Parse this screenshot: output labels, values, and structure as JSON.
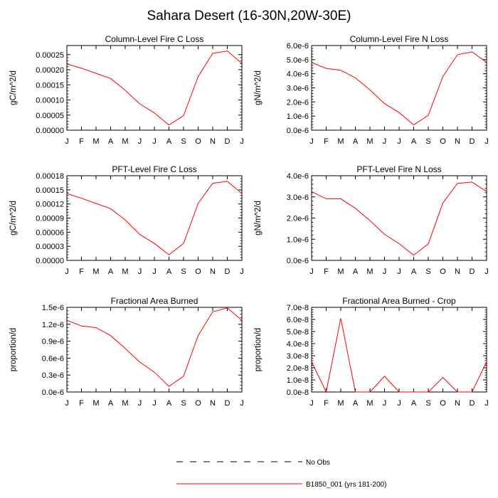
{
  "title": "Sahara Desert (16-30N,20W-30E)",
  "legend": [
    {
      "label": "No Obs",
      "style": "dashed",
      "color": "#000000"
    },
    {
      "label": "B1850_001 (yrs 181-200)",
      "style": "solid",
      "color": "#ff0000"
    }
  ],
  "chart_data": [
    {
      "type": "line",
      "title": "Column-Level Fire C Loss",
      "ylabel": "gC/m^2/d",
      "categories": [
        "J",
        "F",
        "M",
        "A",
        "M",
        "J",
        "J",
        "A",
        "S",
        "O",
        "N",
        "D",
        "J"
      ],
      "ylim": [
        0,
        0.00028
      ],
      "yticks": [
        0,
        5e-05,
        0.0001,
        0.00015,
        0.0002,
        0.00025
      ],
      "ytick_labels": [
        "0.00000",
        "0.00005",
        "0.00010",
        "0.00015",
        "0.00020",
        "0.00025"
      ],
      "series": [
        {
          "name": "B1850_001 (yrs 181-200)",
          "color": "#ff0000",
          "values": [
            0.000219,
            0.000205,
            0.000188,
            0.000171,
            0.000132,
            8.7e-05,
            5.7e-05,
            1.7e-05,
            4.8e-05,
            0.000177,
            0.000254,
            0.000262,
            0.000221
          ]
        }
      ]
    },
    {
      "type": "line",
      "title": "Column-Level Fire N Loss",
      "ylabel": "gN/m^2/d",
      "categories": [
        "J",
        "F",
        "M",
        "A",
        "M",
        "J",
        "J",
        "A",
        "S",
        "O",
        "N",
        "D",
        "J"
      ],
      "ylim": [
        0,
        6e-06
      ],
      "yticks": [
        0,
        1e-06,
        2e-06,
        3e-06,
        4e-06,
        5e-06,
        6e-06
      ],
      "ytick_labels": [
        "0.0e-6",
        "1.0e-6",
        "2.0e-6",
        "3.0e-6",
        "4.0e-6",
        "5.0e-6",
        "6.0e-6"
      ],
      "series": [
        {
          "name": "B1850_001 (yrs 181-200)",
          "color": "#ff0000",
          "values": [
            4.8e-06,
            4.38e-06,
            4.25e-06,
            3.71e-06,
            2.86e-06,
            1.88e-06,
            1.25e-06,
            3.8e-07,
            1.06e-06,
            3.8e-06,
            5.35e-06,
            5.55e-06,
            4.8e-06
          ]
        }
      ]
    },
    {
      "type": "line",
      "title": "PFT-Level Fire C Loss",
      "ylabel": "gC/m^2/d",
      "categories": [
        "J",
        "F",
        "M",
        "A",
        "M",
        "J",
        "J",
        "A",
        "S",
        "O",
        "N",
        "D",
        "J"
      ],
      "ylim": [
        0,
        0.00018
      ],
      "yticks": [
        0,
        3e-05,
        6e-05,
        9e-05,
        0.00012,
        0.00015,
        0.00018
      ],
      "ytick_labels": [
        "0.00000",
        "0.00003",
        "0.00006",
        "0.00009",
        "0.00012",
        "0.00015",
        "0.00018"
      ],
      "series": [
        {
          "name": "B1850_001 (yrs 181-200)",
          "color": "#ff0000",
          "values": [
            0.000142,
            0.000132,
            0.000121,
            0.00011,
            8.6e-05,
            5.5e-05,
            3.6e-05,
            1.2e-05,
            3.6e-05,
            0.000121,
            0.000164,
            0.000168,
            0.000142
          ]
        }
      ]
    },
    {
      "type": "line",
      "title": "PFT-Level Fire N Loss",
      "ylabel": "gN/m^2/d",
      "categories": [
        "J",
        "F",
        "M",
        "A",
        "M",
        "J",
        "J",
        "A",
        "S",
        "O",
        "N",
        "D",
        "J"
      ],
      "ylim": [
        0,
        4e-06
      ],
      "yticks": [
        0,
        1e-06,
        2e-06,
        3e-06,
        4e-06
      ],
      "ytick_labels": [
        "0.0e-6",
        "1.0e-6",
        "2.0e-6",
        "3.0e-6",
        "4.0e-6"
      ],
      "series": [
        {
          "name": "B1850_001 (yrs 181-200)",
          "color": "#ff0000",
          "values": [
            3.25e-06,
            2.91e-06,
            2.91e-06,
            2.46e-06,
            1.88e-06,
            1.23e-06,
            7.9e-07,
            2.5e-07,
            7.8e-07,
            2.71e-06,
            3.64e-06,
            3.7e-06,
            3.25e-06
          ]
        }
      ]
    },
    {
      "type": "line",
      "title": "Fractional Area Burned",
      "ylabel": "proportion/d",
      "categories": [
        "J",
        "F",
        "M",
        "A",
        "M",
        "J",
        "J",
        "A",
        "S",
        "O",
        "N",
        "D",
        "J"
      ],
      "ylim": [
        0,
        1.5e-06
      ],
      "yticks": [
        0,
        3e-07,
        6e-07,
        9e-07,
        1.2e-06,
        1.5e-06
      ],
      "ytick_labels": [
        "0.0e-6",
        "0.3e-6",
        "0.6e-6",
        "0.9e-6",
        "1.2e-6",
        "1.5e-6"
      ],
      "series": [
        {
          "name": "B1850_001 (yrs 181-200)",
          "color": "#ff0000",
          "values": [
            1.27e-06,
            1.17e-06,
            1.14e-06,
            1e-06,
            7.7e-07,
            5.3e-07,
            3.5e-07,
            1e-07,
            2.8e-07,
            1e-06,
            1.42e-06,
            1.49e-06,
            1.27e-06
          ]
        }
      ]
    },
    {
      "type": "line",
      "title": "Fractional Area Burned - Crop",
      "ylabel": "proportion/d",
      "categories": [
        "J",
        "F",
        "M",
        "A",
        "M",
        "J",
        "J",
        "A",
        "S",
        "O",
        "N",
        "D",
        "J"
      ],
      "ylim": [
        0,
        7e-08
      ],
      "yticks": [
        0,
        1e-08,
        2e-08,
        3e-08,
        4e-08,
        5e-08,
        6e-08,
        7e-08
      ],
      "ytick_labels": [
        "0.0e-8",
        "1.0e-8",
        "2.0e-8",
        "3.0e-8",
        "4.0e-8",
        "5.0e-8",
        "6.0e-8",
        "7.0e-8"
      ],
      "series": [
        {
          "name": "B1850_001 (yrs 181-200)",
          "color": "#ff0000",
          "values": [
            2.5e-08,
            0,
            6.1e-08,
            0,
            0,
            1.3e-08,
            0,
            0,
            0,
            1.2e-08,
            0,
            0,
            2.5e-08
          ]
        }
      ]
    }
  ]
}
